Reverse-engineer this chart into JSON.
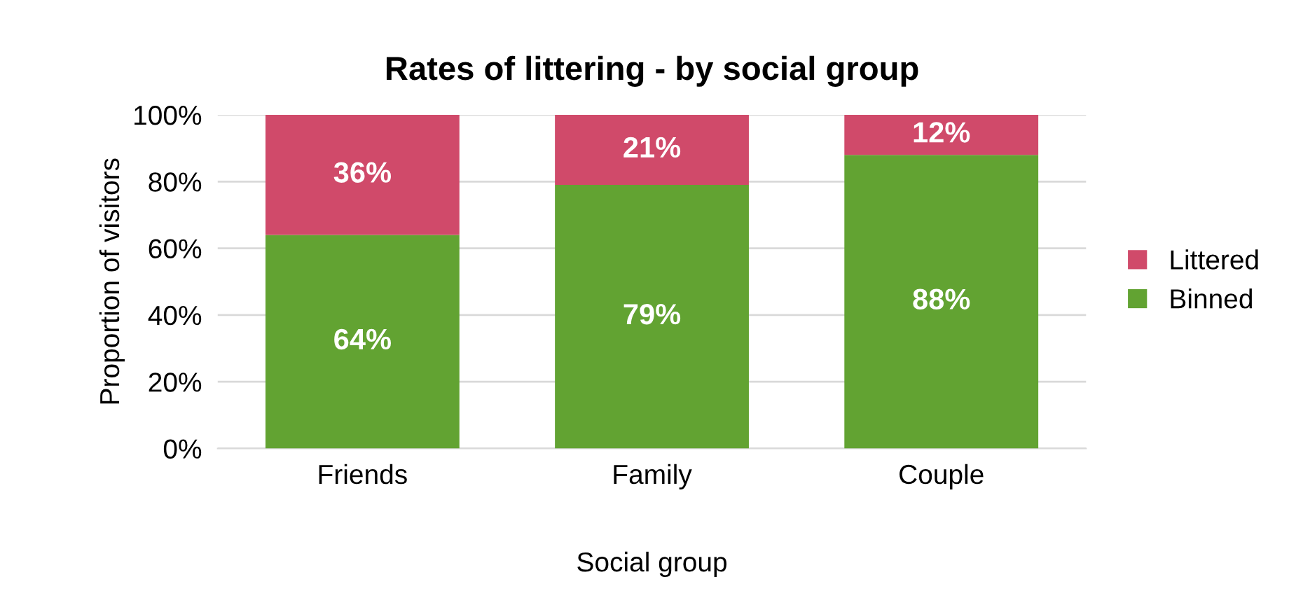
{
  "chart_data": {
    "type": "bar",
    "title": "Rates of littering - by social group",
    "xlabel": "Social group",
    "ylabel": "Proportion of visitors",
    "categories": [
      "Friends",
      "Family",
      "Couple"
    ],
    "series": [
      {
        "name": "Binned",
        "color": "#62a332",
        "values": [
          64,
          79,
          88
        ],
        "value_labels": [
          "64%",
          "79%",
          "88%"
        ]
      },
      {
        "name": "Littered",
        "color": "#d04a6a",
        "values": [
          36,
          21,
          12
        ],
        "value_labels": [
          "36%",
          "21%",
          "12%"
        ]
      }
    ],
    "stacked": true,
    "ylim": [
      0,
      100
    ],
    "yticks": [
      {
        "value": 0,
        "label": "0%"
      },
      {
        "value": 20,
        "label": "20%"
      },
      {
        "value": 40,
        "label": "40%"
      },
      {
        "value": 60,
        "label": "60%"
      },
      {
        "value": 80,
        "label": "80%"
      },
      {
        "value": 100,
        "label": "100%"
      }
    ],
    "grid": "y",
    "legend": "right"
  }
}
